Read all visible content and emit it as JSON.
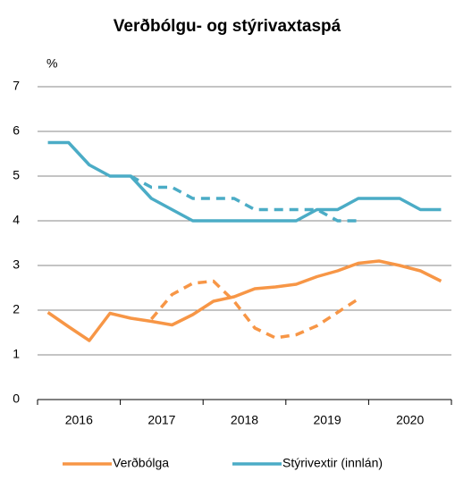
{
  "chart_data": {
    "type": "line",
    "title": "Verðbólgu- og stýrivaxtaspá",
    "y_unit": "%",
    "categories": [
      null,
      null,
      null,
      null,
      null,
      null,
      null,
      null,
      null,
      null,
      null,
      null,
      null,
      null,
      null,
      null,
      null,
      null,
      null,
      null
    ],
    "year_labels": [
      "2016",
      "2017",
      "2018",
      "2019",
      "2020"
    ],
    "series": [
      {
        "name": "Verðbólga",
        "color": "#f79646",
        "dashed": false,
        "values": [
          1.95,
          1.63,
          1.32,
          1.93,
          1.82,
          1.75,
          1.67,
          1.9,
          2.2,
          2.3,
          2.48,
          2.52,
          2.58,
          2.75,
          2.88,
          3.05,
          3.1,
          3.0,
          2.88,
          2.65
        ]
      },
      {
        "color": "#f79646",
        "dashed": true,
        "values": [
          null,
          null,
          null,
          null,
          null,
          1.8,
          2.35,
          2.6,
          2.65,
          2.2,
          1.6,
          1.38,
          1.45,
          1.65,
          1.95,
          2.25,
          null,
          null,
          null,
          null
        ]
      },
      {
        "name": "Stýrivextir (innlán)",
        "color": "#4bacc6",
        "dashed": false,
        "values": [
          5.75,
          5.75,
          5.25,
          5.0,
          5.0,
          4.5,
          4.25,
          4.0,
          4.0,
          4.0,
          4.0,
          4.0,
          4.0,
          4.25,
          4.25,
          4.5,
          4.5,
          4.5,
          4.25,
          4.25
        ]
      },
      {
        "color": "#4bacc6",
        "dashed": true,
        "values": [
          null,
          null,
          null,
          null,
          5.0,
          4.75,
          4.75,
          4.5,
          4.5,
          4.5,
          4.25,
          4.25,
          4.25,
          4.25,
          4.0,
          4.0,
          null,
          null,
          null,
          null
        ]
      }
    ],
    "ylim": [
      0,
      7
    ],
    "yticks": [
      0,
      1,
      2,
      3,
      4,
      5,
      6,
      7
    ],
    "grid": true
  }
}
